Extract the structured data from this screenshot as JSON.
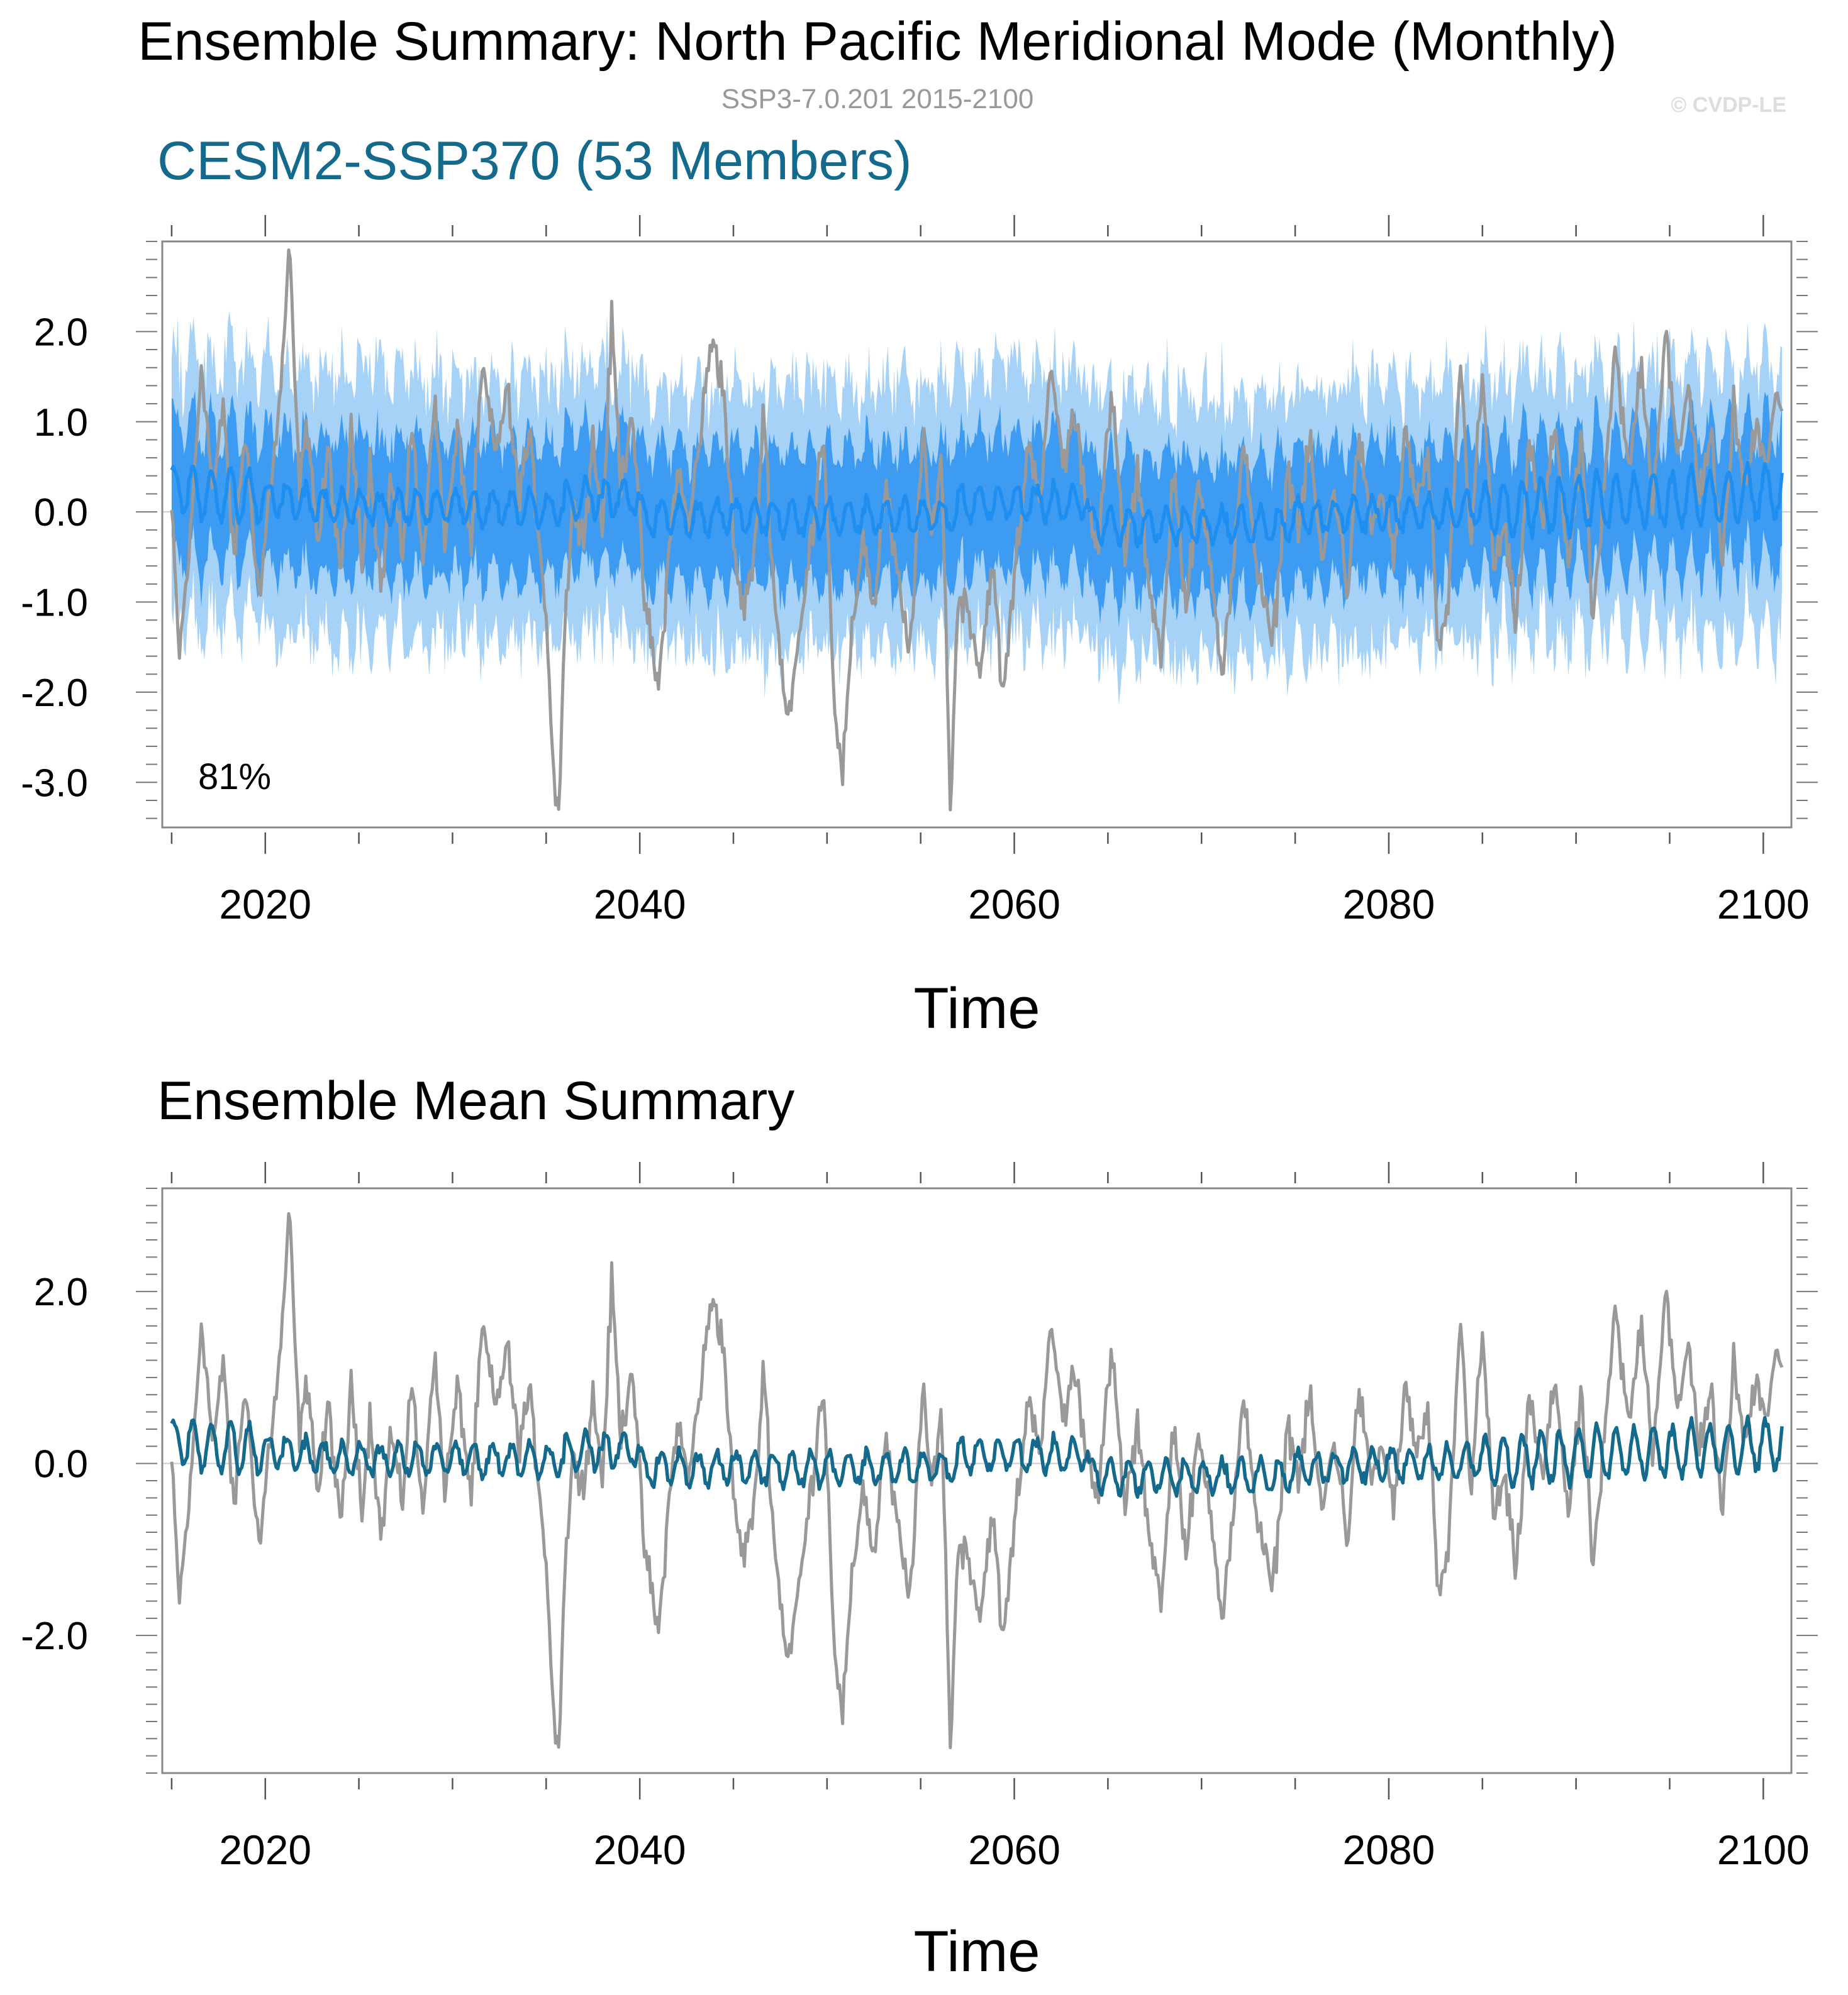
{
  "header": {
    "title": "Ensemble Summary: North Pacific Meridional Mode (Monthly)",
    "subtitle": "SSP3-7.0.201 2015-2100",
    "watermark": "© CVDP-LE"
  },
  "colors": {
    "observed": "#999999",
    "ensemble_mean_top": "#1e8ef0",
    "ensemble_mean_bottom": "#136a8c",
    "spread_outer": "#a6d2f8",
    "spread_inner": "#3d9cf2",
    "panel_title": "#136a8c",
    "axis": "#555555"
  },
  "chart_data": [
    {
      "type": "area",
      "title": "CESM2-SSP370 (53 Members)",
      "xlabel": "Time",
      "ylabel": "",
      "xlim": [
        2014.5,
        2101.5
      ],
      "ylim": [
        -3.5,
        3.0
      ],
      "x_ticks": [
        2020,
        2040,
        2060,
        2080,
        2100
      ],
      "x_tick_labels": [
        "2020",
        "2040",
        "2060",
        "2080",
        "2100"
      ],
      "y_ticks": [
        2.0,
        1.0,
        0.0,
        -1.0,
        -2.0,
        -3.0
      ],
      "y_tick_labels": [
        "2.0",
        "1.0",
        "0.0",
        "-1.0",
        "-2.0",
        "-3.0"
      ],
      "annotation": "81%",
      "grid": false,
      "time_range": [
        2015.0,
        2101.0
      ],
      "series": [
        {
          "role": "spread_outer",
          "description_range": [
            -2.0,
            2.0
          ]
        },
        {
          "role": "spread_inner",
          "description_range": [
            -1.0,
            1.0
          ]
        },
        {
          "role": "ensemble_mean"
        },
        {
          "role": "observed"
        }
      ]
    },
    {
      "type": "line",
      "title": "Ensemble Mean Summary",
      "xlabel": "Time",
      "ylabel": "",
      "xlim": [
        2014.5,
        2101.5
      ],
      "ylim": [
        -3.6,
        3.2
      ],
      "x_ticks": [
        2020,
        2040,
        2060,
        2080,
        2100
      ],
      "x_tick_labels": [
        "2020",
        "2040",
        "2060",
        "2080",
        "2100"
      ],
      "y_ticks": [
        2.0,
        0.0,
        -2.0
      ],
      "y_tick_labels": [
        "2.0",
        "0.0",
        "-2.0"
      ],
      "grid": false,
      "series": [
        {
          "role": "observed"
        },
        {
          "role": "ensemble_mean"
        }
      ]
    }
  ],
  "observed_keypoints": [
    [
      2015.0,
      0.0
    ],
    [
      2015.4,
      -1.6
    ],
    [
      2016.0,
      -0.3
    ],
    [
      2016.6,
      1.7
    ],
    [
      2017.2,
      0.2
    ],
    [
      2017.8,
      1.2
    ],
    [
      2018.3,
      -0.6
    ],
    [
      2018.9,
      0.9
    ],
    [
      2019.3,
      0.0
    ],
    [
      2019.7,
      -1.0
    ],
    [
      2020.2,
      0.2
    ],
    [
      2020.7,
      1.0
    ],
    [
      2021.3,
      2.9
    ],
    [
      2021.8,
      0.3
    ],
    [
      2022.3,
      1.0
    ],
    [
      2022.8,
      -0.4
    ],
    [
      2023.4,
      0.7
    ],
    [
      2024.0,
      -0.8
    ],
    [
      2024.6,
      0.9
    ],
    [
      2025.2,
      -0.5
    ],
    [
      2025.6,
      0.6
    ],
    [
      2026.2,
      -0.9
    ],
    [
      2026.7,
      0.4
    ],
    [
      2027.3,
      -0.5
    ],
    [
      2027.8,
      1.0
    ],
    [
      2028.4,
      -0.6
    ],
    [
      2029.0,
      1.3
    ],
    [
      2029.6,
      -0.3
    ],
    [
      2030.3,
      0.9
    ],
    [
      2031.0,
      -0.4
    ],
    [
      2031.6,
      1.6
    ],
    [
      2032.3,
      0.6
    ],
    [
      2032.9,
      1.4
    ],
    [
      2033.5,
      0.2
    ],
    [
      2034.1,
      0.8
    ],
    [
      2034.8,
      -0.6
    ],
    [
      2035.1,
      -1.5
    ],
    [
      2035.4,
      -3.0
    ],
    [
      2035.7,
      -3.2
    ],
    [
      2036.0,
      -1.2
    ],
    [
      2036.5,
      0.2
    ],
    [
      2037.0,
      -0.3
    ],
    [
      2037.5,
      0.8
    ],
    [
      2038.0,
      -0.2
    ],
    [
      2038.5,
      2.1
    ],
    [
      2039.0,
      0.3
    ],
    [
      2039.6,
      1.2
    ],
    [
      2040.2,
      -0.9
    ],
    [
      2041.0,
      -2.0
    ],
    [
      2041.5,
      -0.6
    ],
    [
      2042.0,
      0.5
    ],
    [
      2042.6,
      -0.2
    ],
    [
      2043.3,
      1.0
    ],
    [
      2043.9,
      2.0
    ],
    [
      2044.5,
      1.3
    ],
    [
      2045.0,
      -0.4
    ],
    [
      2045.5,
      -1.1
    ],
    [
      2046.2,
      -0.4
    ],
    [
      2046.6,
      1.2
    ],
    [
      2047.2,
      -1.0
    ],
    [
      2047.9,
      -2.3
    ],
    [
      2048.6,
      -1.3
    ],
    [
      2049.2,
      -0.2
    ],
    [
      2049.8,
      1.0
    ],
    [
      2050.4,
      -2.1
    ],
    [
      2050.8,
      -3.0
    ],
    [
      2051.3,
      -1.5
    ],
    [
      2051.9,
      -0.2
    ],
    [
      2052.5,
      -1.1
    ],
    [
      2053.1,
      0.3
    ],
    [
      2053.8,
      -0.8
    ],
    [
      2054.4,
      -1.6
    ],
    [
      2055.1,
      0.8
    ],
    [
      2055.6,
      -0.3
    ],
    [
      2056.1,
      0.7
    ],
    [
      2056.6,
      -3.3
    ],
    [
      2057.0,
      -0.9
    ],
    [
      2057.6,
      -1.1
    ],
    [
      2058.2,
      -1.8
    ],
    [
      2058.8,
      -0.5
    ],
    [
      2059.4,
      -2.1
    ],
    [
      2060.1,
      -0.5
    ],
    [
      2060.8,
      0.8
    ],
    [
      2061.4,
      0.2
    ],
    [
      2062.0,
      1.6
    ],
    [
      2062.6,
      0.5
    ],
    [
      2063.2,
      1.1
    ],
    [
      2063.9,
      0.1
    ],
    [
      2064.5,
      -0.3
    ],
    [
      2065.2,
      1.3
    ],
    [
      2065.9,
      -0.5
    ],
    [
      2066.6,
      0.4
    ],
    [
      2067.2,
      -0.8
    ],
    [
      2067.9,
      -1.6
    ],
    [
      2068.5,
      0.5
    ],
    [
      2069.2,
      -1.1
    ],
    [
      2069.8,
      0.3
    ],
    [
      2070.5,
      -0.5
    ],
    [
      2071.1,
      -1.8
    ],
    [
      2071.7,
      -0.6
    ],
    [
      2072.3,
      0.8
    ],
    [
      2073.0,
      -0.7
    ],
    [
      2073.8,
      -1.5
    ],
    [
      2074.6,
      0.5
    ],
    [
      2075.2,
      -0.2
    ],
    [
      2075.8,
      0.8
    ],
    [
      2076.4,
      -0.6
    ],
    [
      2077.1,
      0.3
    ],
    [
      2077.8,
      -0.9
    ],
    [
      2078.4,
      0.9
    ],
    [
      2079.0,
      -0.2
    ],
    [
      2079.7,
      0.2
    ],
    [
      2080.3,
      -0.5
    ],
    [
      2080.9,
      0.9
    ],
    [
      2081.5,
      0.1
    ],
    [
      2082.1,
      0.6
    ],
    [
      2082.7,
      -1.7
    ],
    [
      2083.2,
      -1.0
    ],
    [
      2083.8,
      1.7
    ],
    [
      2084.4,
      -0.3
    ],
    [
      2085.0,
      1.5
    ],
    [
      2085.6,
      -0.6
    ],
    [
      2086.2,
      -0.2
    ],
    [
      2086.8,
      -1.3
    ],
    [
      2087.5,
      0.8
    ],
    [
      2088.2,
      -0.2
    ],
    [
      2088.9,
      1.0
    ],
    [
      2089.6,
      -0.6
    ],
    [
      2090.3,
      0.8
    ],
    [
      2090.9,
      -1.2
    ],
    [
      2091.5,
      0.2
    ],
    [
      2092.1,
      1.8
    ],
    [
      2092.8,
      0.4
    ],
    [
      2093.5,
      1.7
    ],
    [
      2094.1,
      0.1
    ],
    [
      2094.8,
      2.1
    ],
    [
      2095.4,
      0.5
    ],
    [
      2096.0,
      1.4
    ],
    [
      2096.6,
      0.2
    ],
    [
      2097.2,
      0.9
    ],
    [
      2097.8,
      -0.7
    ],
    [
      2098.4,
      1.2
    ],
    [
      2099.0,
      0.2
    ],
    [
      2099.6,
      1.0
    ],
    [
      2100.2,
      0.6
    ],
    [
      2100.7,
      1.4
    ],
    [
      2101.0,
      1.0
    ]
  ]
}
